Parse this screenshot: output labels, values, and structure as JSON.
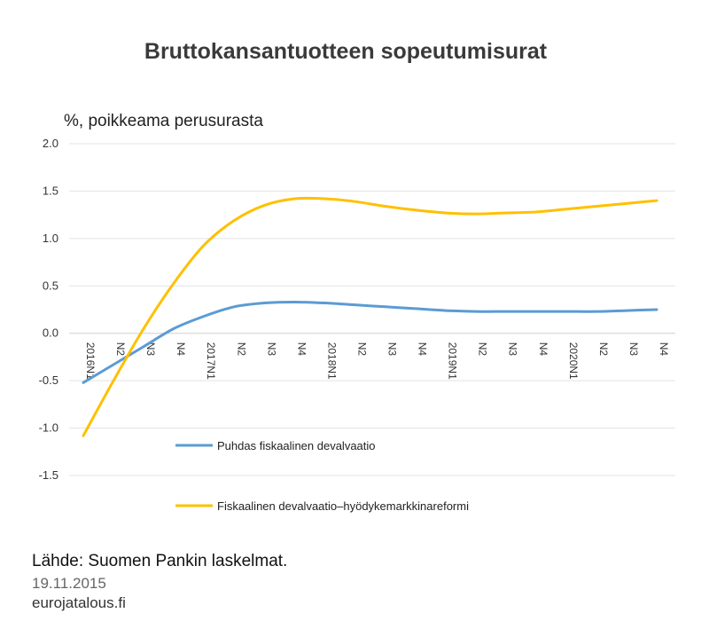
{
  "title": "Bruttokansantuotteen sopeutumisurat",
  "unit_label": "%, poikkeama perusurasta",
  "source": "Lähde: Suomen Pankin laskelmat.",
  "date": "19.11.2015",
  "site": "eurojatalous.fi",
  "chart_data": {
    "type": "line",
    "title": "Bruttokansantuotteen sopeutumisurat",
    "ylabel": "%, poikkeama perusurasta",
    "xlabel": "",
    "ylim": [
      -1.5,
      2.0
    ],
    "yticks": [
      -1.5,
      -1.0,
      -0.5,
      0.0,
      0.5,
      1.0,
      1.5,
      2.0
    ],
    "ytick_labels": [
      "-1.5",
      "-1.0",
      "-0.5",
      "0.0",
      "0.5",
      "1.0",
      "1.5",
      "2.0"
    ],
    "grid": true,
    "legend_position": "lower-center",
    "categories": [
      "2016N1",
      "N2",
      "N3",
      "N4",
      "2017N1",
      "N2",
      "N3",
      "N4",
      "2018N1",
      "N2",
      "N3",
      "N4",
      "2019N1",
      "N2",
      "N3",
      "N4",
      "2020N1",
      "N2",
      "N3",
      "N4"
    ],
    "series": [
      {
        "name": "Puhdas fiskaalinen devalvaatio",
        "color": "#5b9bd5",
        "values": [
          -0.52,
          -0.33,
          -0.14,
          0.05,
          0.18,
          0.28,
          0.32,
          0.33,
          0.32,
          0.3,
          0.28,
          0.26,
          0.24,
          0.23,
          0.23,
          0.23,
          0.23,
          0.23,
          0.24,
          0.25
        ]
      },
      {
        "name": "Fiskaalinen devalvaatio–hyödykemarkkinareformi",
        "color": "#ffc000",
        "values": [
          -1.08,
          -0.5,
          0.05,
          0.53,
          0.93,
          1.19,
          1.35,
          1.42,
          1.42,
          1.39,
          1.34,
          1.3,
          1.27,
          1.26,
          1.27,
          1.28,
          1.31,
          1.34,
          1.37,
          1.4
        ]
      }
    ]
  }
}
